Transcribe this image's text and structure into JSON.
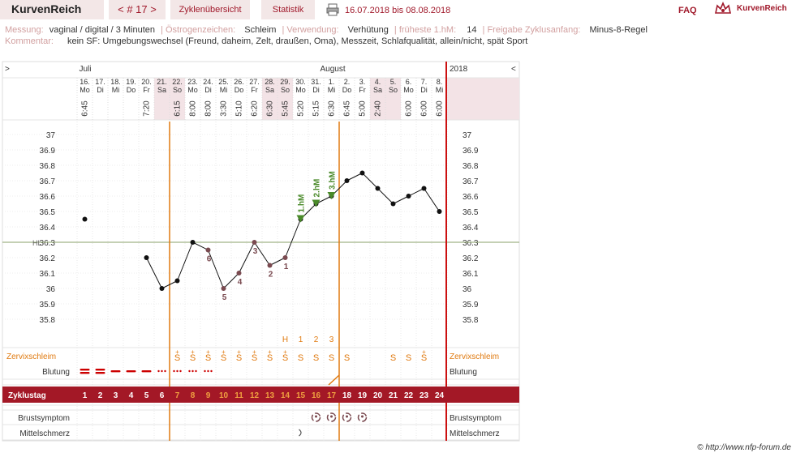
{
  "header": {
    "brand": "KurvenReich",
    "cycle_nav": "< # 17 >",
    "tab_overview": "Zyklenübersicht",
    "tab_stats": "Statistik",
    "date_range": "16.07.2018 bis 08.08.2018",
    "faq": "FAQ",
    "logo_text": "KurvenReich"
  },
  "info": {
    "messung_label": "Messung:",
    "messung_value": "vaginal / digital / 3 Minuten",
    "oestrogen_label": "Östrogenzeichen:",
    "oestrogen_value": "Schleim",
    "verwendung_label": "Verwendung:",
    "verwendung_value": "Verhütung",
    "hm_label": "früheste 1.hM:",
    "hm_value": "14",
    "freigabe_label": "Freigabe Zyklusanfang:",
    "freigabe_value": "Minus-8-Regel",
    "kommentar_label": "Kommentar:",
    "kommentar_value": "kein SF: Umgebungswechsel (Freund, daheim, Zelt, draußen, Oma), Messzeit, Schlafqualität, allein/nicht, spät Sport"
  },
  "chart_data": {
    "type": "line",
    "nav_left": ">",
    "nav_right": "<",
    "month_labels": [
      "Juli",
      "August"
    ],
    "year": "2018",
    "days": [
      {
        "date": "16.",
        "dow": "Mo",
        "time": "6:45",
        "temp": 36.45,
        "cycle": "1",
        "weekend": false
      },
      {
        "date": "17.",
        "dow": "Di",
        "time": "",
        "temp": null,
        "cycle": "2",
        "weekend": false
      },
      {
        "date": "18.",
        "dow": "Mi",
        "time": "",
        "temp": null,
        "cycle": "3",
        "weekend": false
      },
      {
        "date": "19.",
        "dow": "Do",
        "time": "",
        "temp": null,
        "cycle": "4",
        "weekend": false
      },
      {
        "date": "20.",
        "dow": "Fr",
        "time": "7:20",
        "temp": 36.2,
        "cycle": "5",
        "weekend": false
      },
      {
        "date": "21.",
        "dow": "Sa",
        "time": "",
        "temp": 36.0,
        "cycle": "6",
        "weekend": true
      },
      {
        "date": "22.",
        "dow": "So",
        "time": "6:15",
        "temp": 36.05,
        "cycle": "7",
        "weekend": true
      },
      {
        "date": "23.",
        "dow": "Mo",
        "time": "8:00",
        "temp": 36.3,
        "cycle": "8",
        "weekend": false
      },
      {
        "date": "24.",
        "dow": "Di",
        "time": "8:00",
        "temp": 36.25,
        "cycle": "9",
        "weekend": false
      },
      {
        "date": "25.",
        "dow": "Mi",
        "time": "3:30",
        "temp": 36.0,
        "cycle": "10",
        "weekend": false
      },
      {
        "date": "26.",
        "dow": "Do",
        "time": "5:10",
        "temp": 36.1,
        "cycle": "11",
        "weekend": false
      },
      {
        "date": "27.",
        "dow": "Fr",
        "time": "6:20",
        "temp": 36.3,
        "cycle": "12",
        "weekend": false
      },
      {
        "date": "28.",
        "dow": "Sa",
        "time": "6:30",
        "temp": 36.15,
        "cycle": "13",
        "weekend": true
      },
      {
        "date": "29.",
        "dow": "So",
        "time": "5:45",
        "temp": 36.2,
        "cycle": "14",
        "weekend": true
      },
      {
        "date": "30.",
        "dow": "Mo",
        "time": "5:20",
        "temp": 36.45,
        "cycle": "15",
        "weekend": false
      },
      {
        "date": "31.",
        "dow": "Di",
        "time": "5:15",
        "temp": 36.55,
        "cycle": "16",
        "weekend": false
      },
      {
        "date": "1.",
        "dow": "Mi",
        "time": "6:30",
        "temp": 36.6,
        "cycle": "17",
        "weekend": false
      },
      {
        "date": "2.",
        "dow": "Do",
        "time": "6:45",
        "temp": 36.7,
        "cycle": "18",
        "weekend": false
      },
      {
        "date": "3.",
        "dow": "Fr",
        "time": "5:00",
        "temp": 36.75,
        "cycle": "19",
        "weekend": false
      },
      {
        "date": "4.",
        "dow": "Sa",
        "time": "2:40",
        "temp": 36.65,
        "cycle": "20",
        "weekend": true
      },
      {
        "date": "5.",
        "dow": "So",
        "time": "",
        "temp": 36.55,
        "cycle": "21",
        "weekend": true
      },
      {
        "date": "6.",
        "dow": "Mo",
        "time": "6:00",
        "temp": 36.6,
        "cycle": "22",
        "weekend": false
      },
      {
        "date": "7.",
        "dow": "Di",
        "time": "6:00",
        "temp": 36.65,
        "cycle": "23",
        "weekend": false
      },
      {
        "date": "8.",
        "dow": "Mi",
        "time": "6:00",
        "temp": 36.5,
        "cycle": "24",
        "weekend": false
      }
    ],
    "y_ticks": [
      "37",
      "36.9",
      "36.8",
      "36.7",
      "36.6",
      "36.5",
      "36.4",
      "36.3",
      "36.2",
      "36.1",
      "36",
      "35.9",
      "35.8"
    ],
    "ylim": [
      35.75,
      37.05
    ],
    "hl_label": "HL",
    "hl_value": 36.3,
    "low_count_labels": [
      {
        "day": 9,
        "label": "6"
      },
      {
        "day": 10,
        "label": "5"
      },
      {
        "day": 11,
        "label": "4"
      },
      {
        "day": 12,
        "label": "3"
      },
      {
        "day": 13,
        "label": "2"
      },
      {
        "day": 14,
        "label": "1"
      }
    ],
    "high_markers": [
      {
        "day": 15,
        "label": "1.hM"
      },
      {
        "day": 16,
        "label": "2.hM"
      },
      {
        "day": 17,
        "label": "3.hM"
      }
    ],
    "peak_count_labels": [
      {
        "day": 14,
        "label": "H"
      },
      {
        "day": 15,
        "label": "1"
      },
      {
        "day": 16,
        "label": "2"
      },
      {
        "day": 17,
        "label": "3"
      }
    ],
    "zervix_label": "Zervixschleim",
    "zervix": [
      "",
      "",
      "",
      "",
      "",
      "",
      "S+",
      "S+",
      "S+",
      "S+",
      "S+",
      "S+",
      "S+",
      "S+",
      "S",
      "S",
      "S",
      "S",
      "",
      "",
      "S",
      "S",
      "S+",
      ""
    ],
    "blutung_label": "Blutung",
    "blutung": [
      "heavy",
      "heavy",
      "medium",
      "medium",
      "medium",
      "light",
      "light",
      "light",
      "light",
      "",
      "",
      "",
      "",
      "",
      "",
      "",
      "",
      "",
      "",
      "",
      "",
      "",
      "",
      ""
    ],
    "zyklustag_label": "Zyklustag",
    "brust_label": "Brustsymptom",
    "brust": [
      16,
      17,
      18,
      19
    ],
    "mittel_label": "Mittelschmerz",
    "mittel": [
      15
    ],
    "copyright": "© http://www.nfp-forum.de"
  }
}
